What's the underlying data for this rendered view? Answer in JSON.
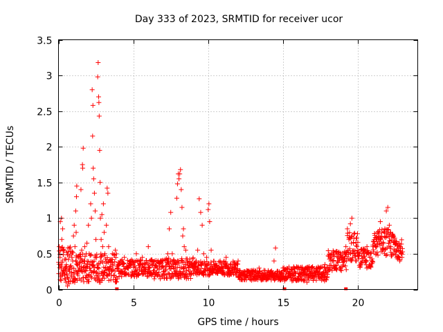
{
  "chart_data": {
    "type": "scatter",
    "title": "Day 333 of 2023, SRMTID for receiver ucor",
    "xlabel": "GPS time / hours",
    "ylabel": "SRMTID / TECUs",
    "xlim": [
      0,
      24
    ],
    "ylim": [
      0,
      3.5
    ],
    "xticks": [
      0,
      5,
      10,
      15,
      20
    ],
    "xtick_labels": [
      "0",
      "5",
      "10",
      "15",
      "20"
    ],
    "yticks": [
      0,
      0.5,
      1,
      1.5,
      2,
      2.5,
      3,
      3.5
    ],
    "ytick_labels": [
      "0",
      "0.5",
      "1",
      "1.5",
      "2",
      "2.5",
      "3",
      "3.5"
    ],
    "grid": true,
    "marker": "plus",
    "color": "#ff0000",
    "series": [
      {
        "name": "SRMTID",
        "points": [
          [
            0.05,
            0.6
          ],
          [
            0.1,
            0.45
          ],
          [
            0.12,
            0.95
          ],
          [
            0.15,
            0.55
          ],
          [
            0.18,
            0.3
          ],
          [
            0.2,
            1.0
          ],
          [
            0.22,
            0.7
          ],
          [
            0.25,
            0.4
          ],
          [
            0.28,
            0.85
          ],
          [
            0.3,
            0.55
          ],
          [
            0.35,
            0.25
          ],
          [
            0.4,
            0.15
          ],
          [
            0.45,
            0.3
          ],
          [
            0.5,
            0.1
          ],
          [
            0.55,
            0.2
          ],
          [
            0.6,
            0.05
          ],
          [
            0.65,
            0.15
          ],
          [
            0.7,
            0.08
          ],
          [
            0.75,
            0.25
          ],
          [
            0.8,
            0.12
          ],
          [
            0.85,
            0.2
          ],
          [
            0.9,
            0.3
          ],
          [
            0.95,
            0.4
          ],
          [
            1.0,
            0.75
          ],
          [
            1.05,
            0.9
          ],
          [
            1.1,
            0.6
          ],
          [
            1.15,
            1.1
          ],
          [
            1.18,
            0.8
          ],
          [
            1.2,
            1.3
          ],
          [
            1.22,
            1.45
          ],
          [
            1.25,
            0.35
          ],
          [
            1.3,
            0.2
          ],
          [
            1.35,
            0.45
          ],
          [
            1.4,
            0.15
          ],
          [
            1.45,
            0.3
          ],
          [
            1.5,
            1.4
          ],
          [
            1.55,
            0.55
          ],
          [
            1.6,
            1.75
          ],
          [
            1.62,
            1.7
          ],
          [
            1.65,
            1.98
          ],
          [
            1.7,
            0.4
          ],
          [
            1.75,
            0.6
          ],
          [
            1.8,
            0.3
          ],
          [
            1.85,
            0.5
          ],
          [
            1.9,
            0.65
          ],
          [
            1.95,
            0.35
          ],
          [
            2.0,
            0.9
          ],
          [
            2.05,
            0.5
          ],
          [
            2.1,
            0.3
          ],
          [
            2.15,
            1.2
          ],
          [
            2.2,
            1.0
          ],
          [
            2.25,
            2.8
          ],
          [
            2.28,
            2.15
          ],
          [
            2.3,
            2.58
          ],
          [
            2.32,
            1.7
          ],
          [
            2.35,
            1.55
          ],
          [
            2.4,
            1.35
          ],
          [
            2.45,
            1.1
          ],
          [
            2.5,
            0.7
          ],
          [
            2.55,
            0.45
          ],
          [
            2.6,
            0.3
          ],
          [
            2.62,
            2.98
          ],
          [
            2.65,
            3.18
          ],
          [
            2.68,
            2.7
          ],
          [
            2.7,
            2.62
          ],
          [
            2.72,
            2.43
          ],
          [
            2.75,
            1.95
          ],
          [
            2.78,
            1.5
          ],
          [
            2.8,
            1.0
          ],
          [
            2.85,
            0.7
          ],
          [
            2.9,
            1.05
          ],
          [
            2.95,
            0.6
          ],
          [
            3.0,
            1.2
          ],
          [
            3.05,
            0.8
          ],
          [
            3.1,
            0.5
          ],
          [
            3.15,
            0.3
          ],
          [
            3.2,
            0.9
          ],
          [
            3.25,
            1.42
          ],
          [
            3.3,
            1.35
          ],
          [
            3.35,
            0.6
          ],
          [
            3.4,
            0.4
          ],
          [
            3.5,
            0.3
          ],
          [
            3.6,
            0.5
          ],
          [
            3.7,
            0.2
          ],
          [
            3.8,
            0.55
          ],
          [
            3.9,
            0.3
          ],
          [
            4.0,
            0.35
          ],
          [
            4.2,
            0.25
          ],
          [
            4.4,
            0.45
          ],
          [
            4.6,
            0.3
          ],
          [
            4.8,
            0.4
          ],
          [
            5.0,
            0.35
          ],
          [
            5.2,
            0.5
          ],
          [
            5.4,
            0.3
          ],
          [
            5.6,
            0.45
          ],
          [
            5.8,
            0.35
          ],
          [
            6.0,
            0.6
          ],
          [
            6.1,
            0.4
          ],
          [
            6.2,
            0.2
          ],
          [
            6.4,
            0.15
          ],
          [
            6.6,
            0.2
          ],
          [
            6.8,
            0.15
          ],
          [
            7.0,
            0.25
          ],
          [
            7.2,
            0.2
          ],
          [
            7.3,
            0.5
          ],
          [
            7.4,
            0.85
          ],
          [
            7.5,
            1.08
          ],
          [
            7.6,
            0.5
          ],
          [
            7.7,
            0.3
          ],
          [
            7.8,
            0.25
          ],
          [
            7.9,
            1.28
          ],
          [
            7.95,
            1.48
          ],
          [
            8.0,
            1.62
          ],
          [
            8.05,
            1.55
          ],
          [
            8.1,
            1.62
          ],
          [
            8.15,
            1.68
          ],
          [
            8.2,
            1.4
          ],
          [
            8.25,
            1.15
          ],
          [
            8.3,
            0.75
          ],
          [
            8.35,
            0.85
          ],
          [
            8.4,
            0.6
          ],
          [
            8.5,
            0.55
          ],
          [
            8.6,
            0.4
          ],
          [
            8.7,
            0.3
          ],
          [
            8.8,
            0.25
          ],
          [
            8.9,
            0.35
          ],
          [
            9.0,
            0.3
          ],
          [
            9.2,
            0.4
          ],
          [
            9.3,
            0.55
          ],
          [
            9.4,
            1.27
          ],
          [
            9.5,
            1.08
          ],
          [
            9.6,
            0.9
          ],
          [
            9.7,
            0.5
          ],
          [
            9.8,
            0.35
          ],
          [
            9.9,
            0.45
          ],
          [
            10.0,
            1.12
          ],
          [
            10.05,
            1.2
          ],
          [
            10.1,
            0.95
          ],
          [
            10.2,
            0.55
          ],
          [
            10.4,
            0.35
          ],
          [
            10.6,
            0.3
          ],
          [
            10.8,
            0.4
          ],
          [
            11.0,
            0.3
          ],
          [
            11.2,
            0.45
          ],
          [
            11.4,
            0.2
          ],
          [
            11.6,
            0.3
          ],
          [
            11.8,
            0.25
          ],
          [
            12.0,
            0.4
          ],
          [
            12.2,
            0.2
          ],
          [
            12.4,
            0.25
          ],
          [
            12.6,
            0.2
          ],
          [
            12.8,
            0.15
          ],
          [
            13.0,
            0.25
          ],
          [
            13.2,
            0.2
          ],
          [
            13.4,
            0.3
          ],
          [
            13.6,
            0.15
          ],
          [
            13.8,
            0.2
          ],
          [
            14.0,
            0.15
          ],
          [
            14.2,
            0.25
          ],
          [
            14.4,
            0.4
          ],
          [
            14.5,
            0.58
          ],
          [
            14.6,
            0.25
          ],
          [
            14.8,
            0.2
          ],
          [
            15.0,
            0.3
          ],
          [
            15.2,
            0.15
          ],
          [
            15.4,
            0.2
          ],
          [
            15.6,
            0.12
          ],
          [
            15.8,
            0.25
          ],
          [
            16.0,
            0.15
          ],
          [
            16.2,
            0.3
          ],
          [
            16.4,
            0.2
          ],
          [
            16.6,
            0.1
          ],
          [
            16.8,
            0.2
          ],
          [
            17.0,
            0.15
          ],
          [
            17.2,
            0.25
          ],
          [
            17.4,
            0.3
          ],
          [
            17.6,
            0.2
          ],
          [
            17.8,
            0.35
          ],
          [
            18.0,
            0.25
          ],
          [
            18.2,
            0.4
          ],
          [
            18.4,
            0.3
          ],
          [
            18.6,
            0.5
          ],
          [
            18.8,
            0.3
          ],
          [
            19.0,
            0.45
          ],
          [
            19.2,
            0.6
          ],
          [
            19.3,
            0.85
          ],
          [
            19.4,
            0.7
          ],
          [
            19.5,
            0.92
          ],
          [
            19.6,
            1.0
          ],
          [
            19.7,
            0.65
          ],
          [
            19.8,
            0.5
          ],
          [
            19.9,
            0.4
          ],
          [
            20.0,
            0.55
          ],
          [
            20.2,
            0.35
          ],
          [
            20.4,
            0.5
          ],
          [
            20.6,
            0.3
          ],
          [
            20.8,
            0.45
          ],
          [
            21.0,
            0.6
          ],
          [
            21.2,
            0.5
          ],
          [
            21.4,
            0.7
          ],
          [
            21.5,
            0.95
          ],
          [
            21.6,
            0.8
          ],
          [
            21.7,
            0.55
          ],
          [
            21.8,
            0.85
          ],
          [
            21.9,
            1.1
          ],
          [
            22.0,
            1.15
          ],
          [
            22.1,
            0.9
          ],
          [
            22.2,
            0.6
          ],
          [
            22.3,
            0.75
          ],
          [
            22.4,
            0.5
          ],
          [
            22.5,
            0.65
          ],
          [
            22.6,
            0.45
          ],
          [
            22.7,
            0.55
          ],
          [
            22.8,
            0.4
          ]
        ]
      }
    ],
    "dense_band": {
      "segments": [
        [
          0,
          1,
          0.35,
          0.25
        ],
        [
          1,
          4,
          0.3,
          0.2
        ],
        [
          4,
          7,
          0.3,
          0.12
        ],
        [
          7,
          9,
          0.3,
          0.15
        ],
        [
          9,
          12,
          0.3,
          0.1
        ],
        [
          12,
          15,
          0.2,
          0.07
        ],
        [
          15,
          18,
          0.22,
          0.1
        ],
        [
          18,
          19.3,
          0.4,
          0.15
        ],
        [
          19.3,
          20,
          0.6,
          0.2
        ],
        [
          20,
          21,
          0.45,
          0.15
        ],
        [
          21,
          22.5,
          0.65,
          0.2
        ],
        [
          22.5,
          23,
          0.55,
          0.15
        ]
      ],
      "samples_per_hour": 60
    },
    "gap_markers": [
      3.9,
      15.1,
      19.2
    ]
  }
}
